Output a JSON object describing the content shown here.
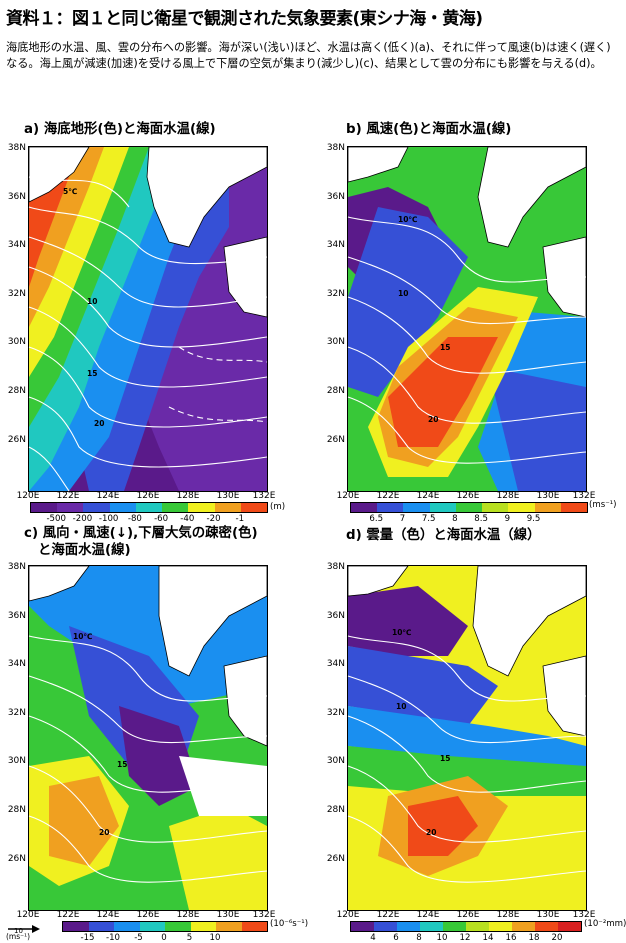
{
  "title": "資料１：図１と同じ衛星で観測された気象要素(東シナ海・黄海)",
  "description": "海底地形の水温、風、雲の分布への影響。海が深い(浅い)ほど、水温は高く(低く)(a)、それに伴って風速(b)は速く(遅く)なる。海上風が減速(加速)を受ける風上で下層の空気が集まり(減少し)(c)、結果として雲の分布にも影響を与える(d)。",
  "panels": [
    {
      "title": "a) 海底地形(色)と海面水温(線)",
      "colorbar_labels": [
        "-500",
        "-200",
        "-100",
        "-80",
        "-60",
        "-40",
        "-20",
        "-1"
      ],
      "colorbar_colors": [
        "#5a1a8a",
        "#6a2aa8",
        "#3650d6",
        "#1a8ff0",
        "#20c8c0",
        "#38c838",
        "#f0f020",
        "#f0a020",
        "#f04a18"
      ],
      "unit": "(m)"
    },
    {
      "title": "b) 風速(色)と海面水温(線)",
      "colorbar_labels": [
        "6.5",
        "7",
        "7.5",
        "8",
        "8.5",
        "9",
        "9.5"
      ],
      "colorbar_colors": [
        "#5a1a8a",
        "#3650d6",
        "#1a8ff0",
        "#20c8c0",
        "#38c838",
        "#b8e020",
        "#f0f020",
        "#f0a020",
        "#f04a18"
      ],
      "unit": "(ms⁻¹)"
    },
    {
      "title": "c) 風向・風速(↓),下層大気の疎密(色)",
      "title_line2": "と海面水温(線)",
      "colorbar_labels": [
        "-15",
        "-10",
        "-5",
        "0",
        "5",
        "10"
      ],
      "colorbar_colors": [
        "#5a1a8a",
        "#3650d6",
        "#1a8ff0",
        "#20c8c0",
        "#38c838",
        "#f0f020",
        "#f0a020",
        "#f04a18"
      ],
      "unit": "(10⁻⁶s⁻¹)",
      "arrow_label": "10",
      "arrow_unit": "(ms⁻¹)"
    },
    {
      "title": "d) 雲量（色）と海面水温（線）",
      "colorbar_labels": [
        "4",
        "6",
        "8",
        "10",
        "12",
        "14",
        "16",
        "18",
        "20"
      ],
      "colorbar_colors": [
        "#5a1a8a",
        "#3650d6",
        "#1a8ff0",
        "#20c8c0",
        "#38c838",
        "#b8e020",
        "#f0f020",
        "#f0a020",
        "#f04a18",
        "#d82020"
      ],
      "unit": "(10⁻²mm)"
    }
  ],
  "lat_labels": [
    "38N",
    "36N",
    "34N",
    "32N",
    "30N",
    "28N",
    "26N"
  ],
  "lon_labels": [
    "120E",
    "122E",
    "124E",
    "126E",
    "128E",
    "130E",
    "132E"
  ],
  "contour_labels": {
    "a": [
      "5℃",
      "10",
      "15",
      "20"
    ],
    "b": [
      "10℃",
      "10",
      "15",
      "20"
    ],
    "c": [
      "10℃",
      "15",
      "20"
    ],
    "d": [
      "10℃",
      "10",
      "15",
      "20"
    ]
  }
}
